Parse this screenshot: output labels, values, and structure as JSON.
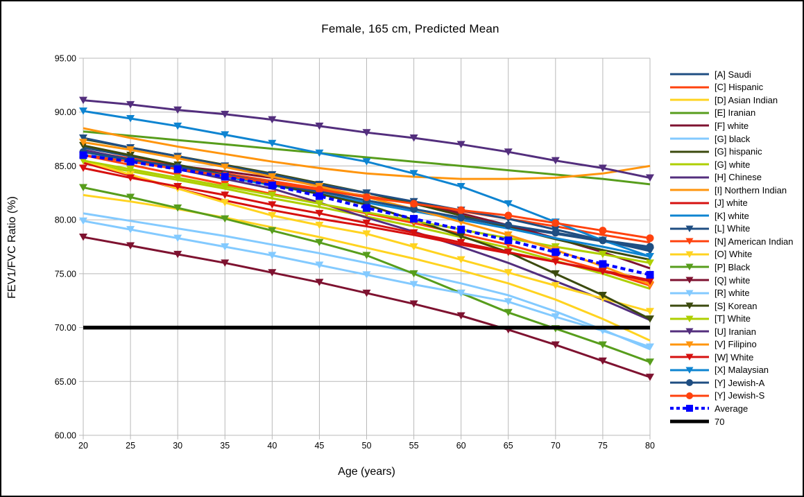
{
  "chart_data": {
    "type": "line",
    "title": "Female, 165 cm, Predicted Mean",
    "xlabel": "Age (years)",
    "ylabel": "FEV1/FVC Ratio (%)",
    "x": [
      20,
      25,
      30,
      35,
      40,
      45,
      50,
      55,
      60,
      65,
      70,
      75,
      80
    ],
    "xlim": [
      20,
      80
    ],
    "ylim": [
      60,
      95
    ],
    "x_tick_labels": [
      "20",
      "25",
      "30",
      "35",
      "40",
      "45",
      "50",
      "55",
      "60",
      "65",
      "70",
      "75",
      "80"
    ],
    "y_tick_labels": [
      "60.00",
      "65.00",
      "70.00",
      "75.00",
      "80.00",
      "85.00",
      "90.00",
      "95.00"
    ],
    "grid": true,
    "legend_position": "right",
    "series": [
      {
        "name": "[A] Saudi",
        "color": "#1F4E82",
        "marker": "none",
        "line": "solid",
        "width": 3,
        "values": [
          86.7,
          85.9,
          85.1,
          84.3,
          83.5,
          82.7,
          81.8,
          81.0,
          80.2,
          79.4,
          78.7,
          78.0,
          77.3
        ]
      },
      {
        "name": "[C] Hispanic",
        "color": "#FF420E",
        "marker": "none",
        "line": "solid",
        "width": 3,
        "values": [
          86.4,
          85.7,
          85.0,
          84.3,
          83.6,
          82.9,
          82.2,
          81.5,
          80.8,
          80.1,
          79.4,
          78.6,
          77.9
        ]
      },
      {
        "name": "[D] Asian Indian",
        "color": "#FFD320",
        "marker": "none",
        "line": "solid",
        "width": 3,
        "values": [
          82.3,
          81.7,
          81.0,
          80.2,
          79.3,
          78.4,
          77.4,
          76.4,
          75.3,
          74.1,
          72.6,
          70.8,
          68.8
        ]
      },
      {
        "name": "[E] Iranian",
        "color": "#579D1C",
        "marker": "none",
        "line": "solid",
        "width": 3,
        "values": [
          88.2,
          87.8,
          87.4,
          87.0,
          86.6,
          86.2,
          85.8,
          85.4,
          85.0,
          84.6,
          84.2,
          83.8,
          83.3
        ]
      },
      {
        "name": "[F] white",
        "color": "#7E1230",
        "marker": "none",
        "line": "solid",
        "width": 3,
        "values": [
          86.0,
          85.5,
          85.0,
          84.5,
          83.9,
          83.2,
          82.5,
          81.6,
          80.6,
          79.5,
          78.3,
          77.0,
          75.5
        ]
      },
      {
        "name": "[G] black",
        "color": "#83CAFF",
        "marker": "none",
        "line": "solid",
        "width": 3,
        "values": [
          80.6,
          79.9,
          79.2,
          78.5,
          77.7,
          76.9,
          76.0,
          75.1,
          74.1,
          73.0,
          71.5,
          69.8,
          68.0
        ]
      },
      {
        "name": "[G] hispanic",
        "color": "#3B4A0E",
        "marker": "none",
        "line": "solid",
        "width": 3,
        "values": [
          87.5,
          86.7,
          85.9,
          85.1,
          84.3,
          83.4,
          82.5,
          81.5,
          80.4,
          79.3,
          78.2,
          77.2,
          76.3
        ]
      },
      {
        "name": "[G] white",
        "color": "#AECF00",
        "marker": "none",
        "line": "solid",
        "width": 3,
        "values": [
          85.3,
          84.5,
          83.7,
          82.9,
          82.0,
          81.2,
          80.3,
          79.4,
          78.4,
          77.4,
          76.2,
          75.0,
          73.6
        ]
      },
      {
        "name": "[H] Chinese",
        "color": "#532E7D",
        "marker": "none",
        "line": "solid",
        "width": 3,
        "values": [
          86.5,
          85.6,
          84.7,
          83.8,
          82.9,
          81.6,
          80.2,
          78.9,
          77.5,
          76.0,
          74.3,
          72.6,
          70.7
        ]
      },
      {
        "name": "[I] Northern Indian",
        "color": "#FF950E",
        "marker": "none",
        "line": "solid",
        "width": 3,
        "values": [
          88.5,
          87.6,
          86.8,
          86.1,
          85.4,
          84.8,
          84.3,
          84.0,
          83.8,
          83.8,
          83.9,
          84.3,
          85.0
        ]
      },
      {
        "name": "[J] white",
        "color": "#D6100F",
        "marker": "none",
        "line": "solid",
        "width": 3,
        "values": [
          85.3,
          84.1,
          82.9,
          81.8,
          80.9,
          80.1,
          79.4,
          78.6,
          77.7,
          76.9,
          76.1,
          75.3,
          74.4
        ]
      },
      {
        "name": "[K] white",
        "color": "#0E84D1",
        "marker": "none",
        "line": "solid",
        "width": 3,
        "values": [
          86.3,
          85.5,
          84.8,
          84.0,
          83.2,
          82.4,
          81.6,
          80.8,
          80.0,
          79.2,
          78.3,
          77.5,
          76.6
        ]
      },
      {
        "name": "[L] White",
        "color": "#1F4E82",
        "marker": "triangle-down",
        "line": "solid",
        "width": 3,
        "values": [
          87.6,
          86.7,
          85.9,
          85.0,
          84.2,
          83.3,
          82.5,
          81.7,
          80.9,
          80.1,
          79.1,
          78.1,
          77.1
        ]
      },
      {
        "name": "[N] American Indian",
        "color": "#FF420E",
        "marker": "triangle-down",
        "line": "solid",
        "width": 3,
        "values": [
          86.0,
          85.1,
          84.2,
          83.3,
          82.4,
          81.5,
          80.6,
          79.7,
          78.7,
          77.7,
          76.5,
          75.3,
          73.9
        ]
      },
      {
        "name": "[O] White",
        "color": "#FFD320",
        "marker": "triangle-down",
        "line": "solid",
        "width": 3,
        "values": [
          85.5,
          84.2,
          82.9,
          81.6,
          80.4,
          79.5,
          78.7,
          77.5,
          76.3,
          75.1,
          73.9,
          72.7,
          71.5
        ]
      },
      {
        "name": "[P] Black",
        "color": "#579D1C",
        "marker": "triangle-down",
        "line": "solid",
        "width": 3,
        "values": [
          83.0,
          82.1,
          81.1,
          80.1,
          79.0,
          77.9,
          76.7,
          75.0,
          73.2,
          71.4,
          69.9,
          68.4,
          66.8
        ]
      },
      {
        "name": "[Q] white",
        "color": "#7E1230",
        "marker": "triangle-down",
        "line": "solid",
        "width": 3,
        "values": [
          78.4,
          77.6,
          76.8,
          76.0,
          75.1,
          74.2,
          73.2,
          72.2,
          71.1,
          69.8,
          68.4,
          66.9,
          65.4
        ]
      },
      {
        "name": "[R] white",
        "color": "#83CAFF",
        "marker": "triangle-down",
        "line": "solid",
        "width": 3,
        "values": [
          79.9,
          79.1,
          78.3,
          77.5,
          76.7,
          75.8,
          74.9,
          74.0,
          73.2,
          72.4,
          71.0,
          69.7,
          68.2
        ]
      },
      {
        "name": "[S] Korean",
        "color": "#3B4A0E",
        "marker": "triangle-down",
        "line": "solid",
        "width": 3,
        "values": [
          86.9,
          86.0,
          85.1,
          84.2,
          83.3,
          82.4,
          81.4,
          80.0,
          78.5,
          77.0,
          75.0,
          73.0,
          70.8
        ]
      },
      {
        "name": "[T] White",
        "color": "#AECF00",
        "marker": "triangle-down",
        "line": "solid",
        "width": 3,
        "values": [
          85.5,
          84.7,
          83.9,
          83.1,
          82.3,
          81.5,
          80.7,
          79.9,
          79.1,
          78.3,
          77.5,
          76.8,
          76.0
        ]
      },
      {
        "name": "[U] Iranian",
        "color": "#532E7D",
        "marker": "triangle-down",
        "line": "solid",
        "width": 3,
        "values": [
          91.1,
          90.7,
          90.2,
          89.8,
          89.3,
          88.7,
          88.1,
          87.6,
          87.0,
          86.3,
          85.5,
          84.8,
          83.9
        ]
      },
      {
        "name": "[V] Filipino",
        "color": "#FF950E",
        "marker": "triangle-down",
        "line": "solid",
        "width": 3,
        "values": [
          87.2,
          86.5,
          85.7,
          84.9,
          84.0,
          83.1,
          82.1,
          81.0,
          79.8,
          78.6,
          77.2,
          75.7,
          74.0
        ]
      },
      {
        "name": "[W] White",
        "color": "#D6100F",
        "marker": "triangle-down",
        "line": "solid",
        "width": 3,
        "values": [
          84.8,
          83.9,
          83.1,
          82.3,
          81.4,
          80.6,
          79.7,
          78.8,
          77.9,
          77.0,
          76.1,
          75.2,
          74.3
        ]
      },
      {
        "name": "[X] Malaysian",
        "color": "#0E84D1",
        "marker": "triangle-down",
        "line": "solid",
        "width": 3,
        "values": [
          90.1,
          89.4,
          88.7,
          87.9,
          87.1,
          86.2,
          85.4,
          84.3,
          83.1,
          81.5,
          79.8,
          78.1,
          76.6
        ]
      },
      {
        "name": "[Y] Jewish-A",
        "color": "#1F4E82",
        "marker": "circle",
        "line": "solid",
        "width": 3,
        "values": [
          86.3,
          85.6,
          84.9,
          84.2,
          83.4,
          82.6,
          81.8,
          81.0,
          80.2,
          79.5,
          78.8,
          78.1,
          77.5
        ]
      },
      {
        "name": "[Y] Jewish-S",
        "color": "#FF420E",
        "marker": "circle",
        "line": "solid",
        "width": 3,
        "values": [
          86.0,
          85.4,
          84.7,
          84.1,
          83.4,
          82.8,
          82.1,
          81.5,
          80.9,
          80.4,
          79.7,
          79.0,
          78.3
        ]
      },
      {
        "name": "Average",
        "color": "#0000FF",
        "marker": "square",
        "line": "dashed",
        "width": 4.2,
        "values": [
          86.0,
          85.4,
          84.7,
          84.0,
          83.2,
          82.2,
          81.1,
          80.1,
          79.1,
          78.1,
          77.0,
          75.9,
          74.9
        ]
      },
      {
        "name": "70",
        "color": "#000000",
        "marker": "none",
        "line": "solid",
        "width": 5.5,
        "values": [
          70,
          70,
          70,
          70,
          70,
          70,
          70,
          70,
          70,
          70,
          70,
          70,
          70
        ]
      }
    ]
  }
}
